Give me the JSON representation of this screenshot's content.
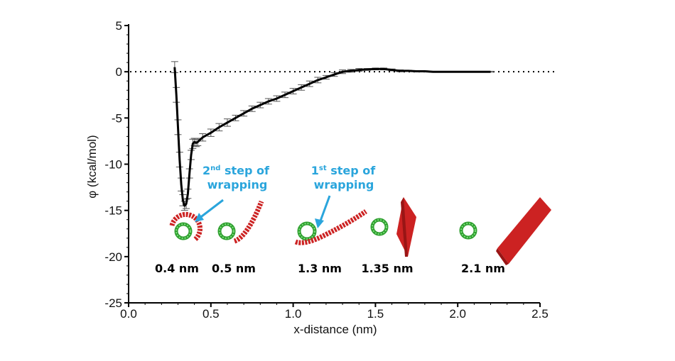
{
  "chart_data": {
    "type": "line",
    "xlabel": "x-distance (nm)",
    "ylabel": "φ (kcal/mol)",
    "xlim": [
      0.0,
      2.5
    ],
    "ylim": [
      -25,
      5
    ],
    "x_ticks": [
      "0.0",
      "0.5",
      "1.0",
      "1.5",
      "2.0",
      "2.5"
    ],
    "y_ticks": [
      "5",
      "0",
      "-5",
      "-10",
      "-15",
      "-20",
      "-25"
    ],
    "reference_line_y": 0,
    "series": [
      {
        "x": [
          0.28,
          0.29,
          0.3,
          0.31,
          0.32,
          0.33,
          0.34,
          0.35,
          0.36,
          0.37,
          0.38,
          0.39,
          0.4,
          0.41,
          0.42,
          0.45,
          0.5,
          0.55,
          0.6,
          0.65,
          0.7,
          0.75,
          0.8,
          0.85,
          0.9,
          0.95,
          1.0,
          1.05,
          1.1,
          1.15,
          1.2,
          1.25,
          1.3,
          1.35,
          1.4,
          1.45,
          1.5,
          1.55,
          1.6,
          1.65,
          1.7,
          1.75,
          1.8,
          1.85,
          1.9,
          1.95,
          2.0,
          2.05,
          2.1,
          2.15,
          2.2
        ],
        "y": [
          0.5,
          -2.5,
          -6.0,
          -9.5,
          -12.2,
          -13.9,
          -14.5,
          -14.3,
          -13.2,
          -11.0,
          -9.0,
          -7.8,
          -7.6,
          -7.7,
          -7.6,
          -7.1,
          -6.6,
          -6.0,
          -5.5,
          -5.0,
          -4.5,
          -4.0,
          -3.6,
          -3.2,
          -2.9,
          -2.5,
          -2.1,
          -1.7,
          -1.3,
          -0.9,
          -0.6,
          -0.3,
          0.0,
          0.1,
          0.2,
          0.25,
          0.3,
          0.3,
          0.2,
          0.1,
          0.1,
          0.05,
          0.05,
          0.0,
          0.0,
          0.0,
          0.0,
          0.0,
          0.0,
          0.0,
          0.0
        ],
        "err": [
          0.6,
          0.8,
          0.8,
          0.8,
          0.7,
          0.6,
          0.5,
          0.5,
          0.5,
          0.5,
          0.5,
          0.5,
          0.4,
          0.4,
          0.4,
          0.4,
          0.4,
          0.4,
          0.4,
          0.3,
          0.3,
          0.3,
          0.3,
          0.3,
          0.3,
          0.3,
          0.3,
          0.3,
          0.3,
          0.3,
          0.2,
          0.2,
          0.2,
          0.15,
          0.15,
          0.1,
          0.1,
          0.1,
          0.1,
          0.1,
          0.05,
          0.05,
          0.05,
          0.05,
          0.05,
          0.05,
          0.05,
          0.05,
          0.05,
          0.05,
          0.05
        ]
      }
    ],
    "annotations": {
      "distances": [
        {
          "label": "0.4 nm",
          "x": 0.4
        },
        {
          "label": "0.5 nm",
          "x": 0.5
        },
        {
          "label": "1.3 nm",
          "x": 1.3
        },
        {
          "label": "1.35 nm",
          "x": 1.35
        },
        {
          "label": "2.1 nm",
          "x": 2.1
        }
      ],
      "steps": [
        {
          "number": "2",
          "suffix": "nd",
          "line1": " step of",
          "line2": "wrapping"
        },
        {
          "number": "1",
          "suffix": "st",
          "line1": " step of",
          "line2": "wrapping"
        }
      ]
    },
    "colors": {
      "curve": "#000000",
      "errorbar": "#555555",
      "ring_outer": "#2e9e2e",
      "ring_inner": "#7ee07e",
      "sheet": "#cc2222",
      "sheet_dark": "#991515",
      "arrow": "#2aa5dc"
    }
  }
}
